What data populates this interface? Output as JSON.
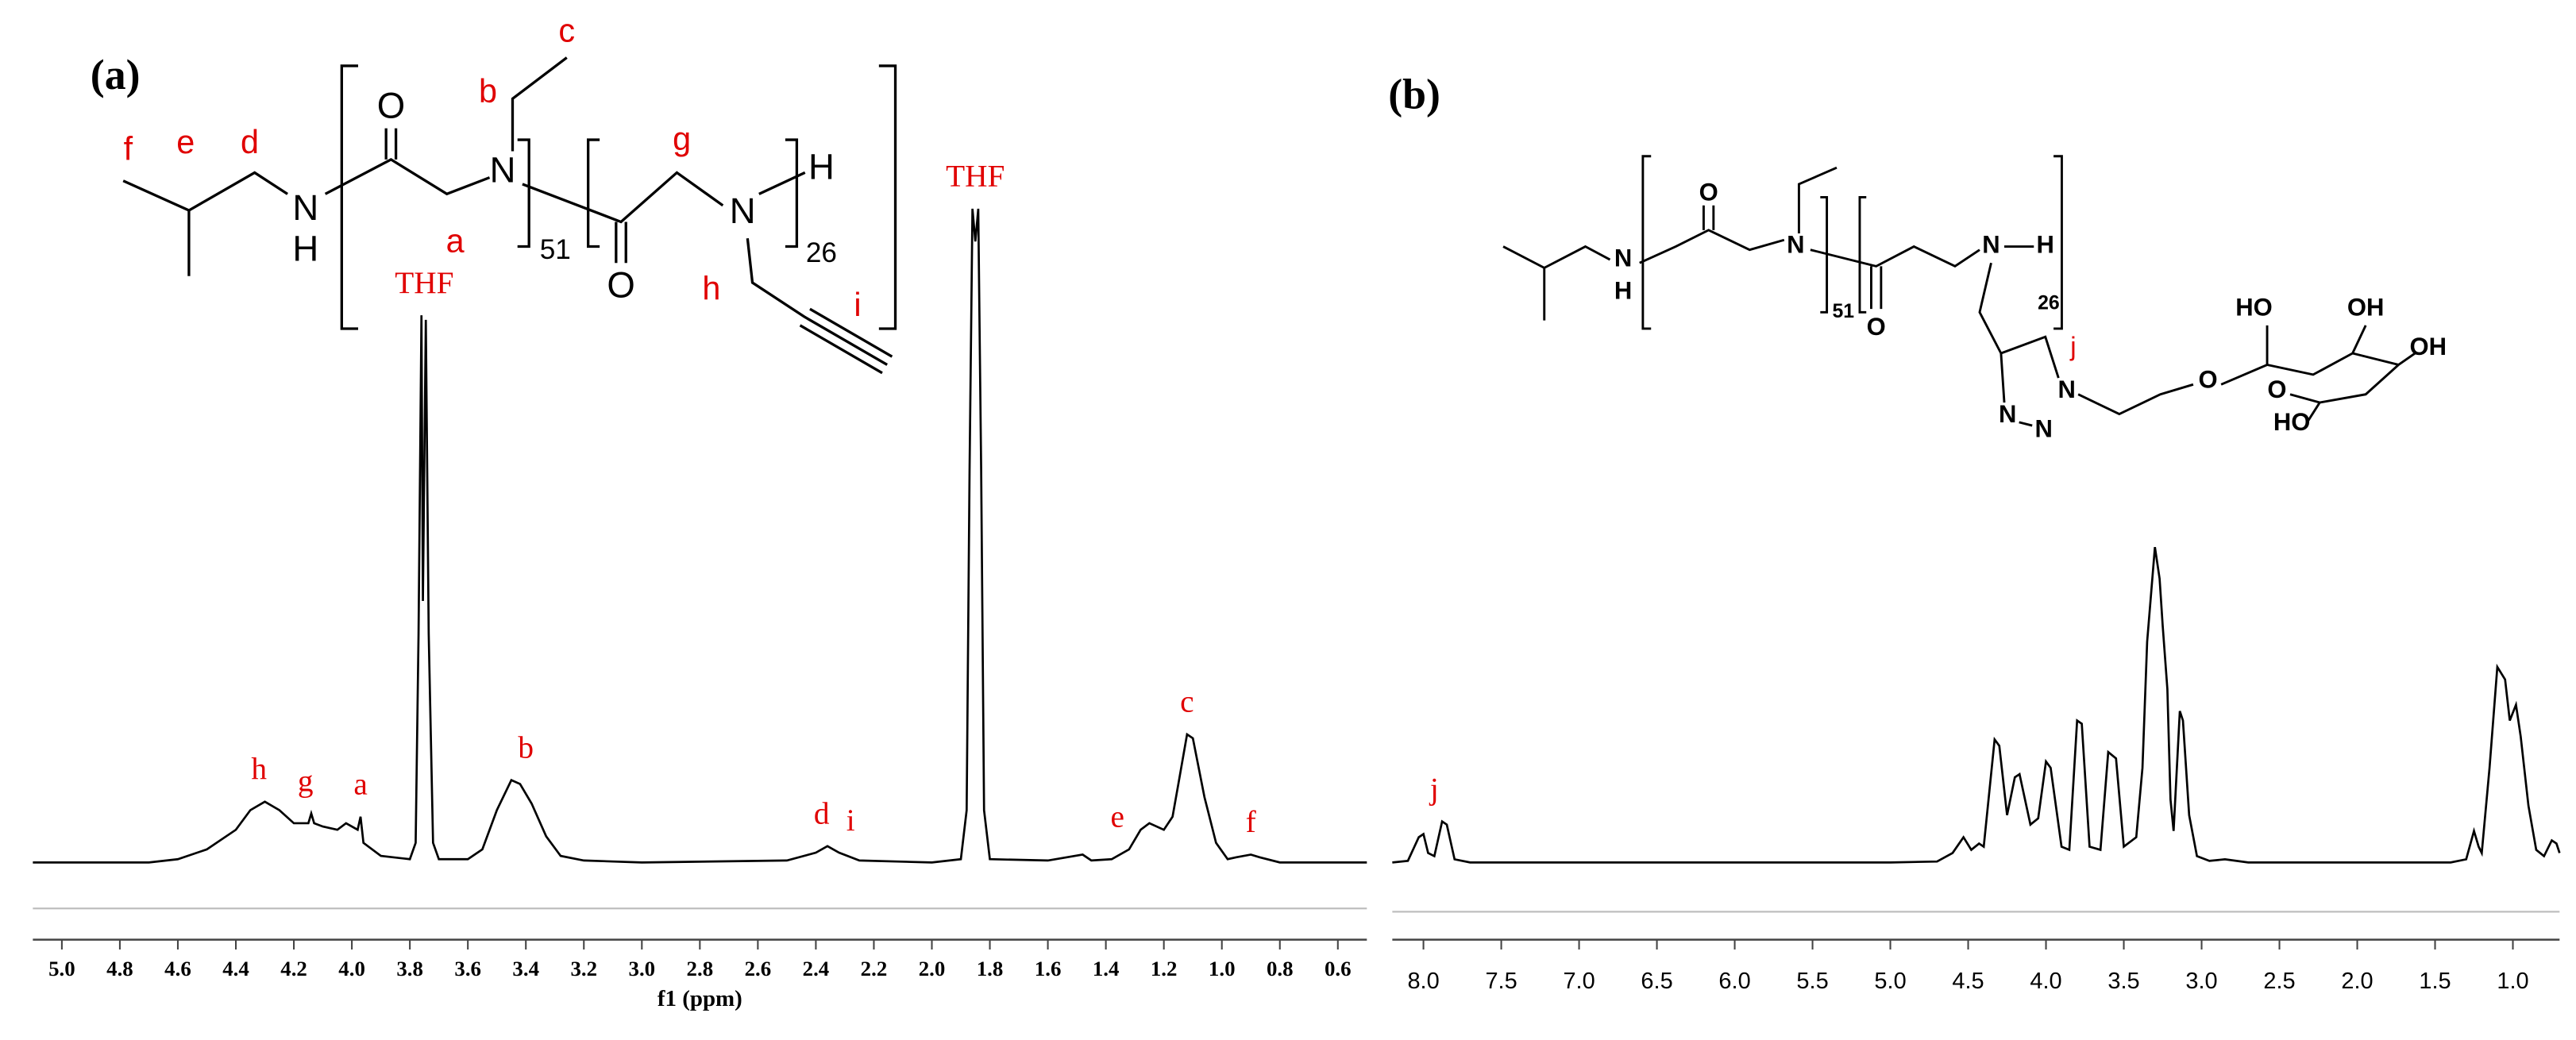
{
  "chart_data": [
    {
      "type": "line",
      "panel_label": "(a)",
      "xlabel": "f1 (ppm)",
      "color": "#000000",
      "xlim": [
        5.1,
        0.5
      ],
      "ylim": [
        0,
        100
      ],
      "xticks": [
        {
          "value": 5,
          "label": "5.0"
        },
        4.8,
        4.6,
        4.4,
        4.2,
        {
          "value": 4,
          "label": "4.0"
        },
        3.8,
        3.6,
        3.4,
        3.2,
        {
          "value": 3,
          "label": "3.0"
        },
        2.8,
        2.6,
        2.4,
        2.2,
        {
          "value": 2,
          "label": "2.0"
        },
        1.8,
        1.6,
        1.4,
        1.2,
        {
          "value": 1,
          "label": "1.0"
        },
        0.8,
        0.6
      ],
      "x": [
        5.1,
        4.7,
        4.6,
        4.5,
        4.4,
        4.35,
        4.3,
        4.25,
        4.2,
        4.15,
        4.14,
        4.13,
        4.1,
        4.05,
        4.02,
        4.0,
        3.98,
        3.97,
        3.96,
        3.9,
        3.8,
        3.78,
        3.77,
        3.76,
        3.755,
        3.745,
        3.735,
        3.72,
        3.7,
        3.6,
        3.55,
        3.5,
        3.45,
        3.42,
        3.38,
        3.33,
        3.28,
        3.2,
        3.0,
        2.5,
        2.4,
        2.36,
        2.32,
        2.25,
        2.0,
        1.9,
        1.88,
        1.87,
        1.86,
        1.85,
        1.84,
        1.83,
        1.82,
        1.8,
        1.6,
        1.48,
        1.45,
        1.38,
        1.32,
        1.28,
        1.25,
        1.2,
        1.17,
        1.15,
        1.12,
        1.1,
        1.06,
        1.02,
        0.98,
        0.95,
        0.9,
        0.87,
        0.8,
        0.5
      ],
      "values": [
        0,
        0,
        0.5,
        2,
        5,
        8,
        9.3,
        8,
        6,
        6,
        7.5,
        6,
        5.5,
        5,
        6,
        5.5,
        5,
        7,
        3,
        1,
        0.5,
        3,
        35,
        83.7,
        40,
        83,
        35,
        3,
        0.5,
        0.5,
        2,
        8,
        12.6,
        12,
        9,
        4,
        1,
        0.3,
        0,
        0.3,
        1.5,
        2.5,
        1.5,
        0.3,
        0,
        0.5,
        8,
        60,
        100,
        95,
        100,
        60,
        8,
        0.5,
        0.3,
        1.2,
        0.3,
        0.5,
        2,
        5,
        6,
        5,
        7,
        12,
        19.6,
        19,
        10,
        3,
        0.5,
        0.8,
        1.2,
        0.8,
        0,
        0
      ],
      "annotations": [
        {
          "text": "h",
          "x": 4.32
        },
        {
          "text": "g",
          "x": 4.16
        },
        {
          "text": "a",
          "x": 3.97
        },
        {
          "text": "THF",
          "x": 3.75
        },
        {
          "text": "b",
          "x": 3.4
        },
        {
          "text": "d",
          "x": 2.38
        },
        {
          "text": "i",
          "x": 2.28
        },
        {
          "text": "THF",
          "x": 1.85
        },
        {
          "text": "e",
          "x": 1.36
        },
        {
          "text": "c",
          "x": 1.12
        },
        {
          "text": "f",
          "x": 0.9
        }
      ],
      "structure": [
        "f",
        "e",
        "d",
        "N",
        "H",
        "O",
        "a",
        "N",
        "b",
        "c",
        "51",
        "O",
        "g",
        "N",
        "H",
        "26",
        "h",
        "i"
      ]
    },
    {
      "type": "line",
      "panel_label": "(b)",
      "color": "#000000",
      "xlim": [
        8.2,
        0.7
      ],
      "ylim": [
        0,
        100
      ],
      "xticks": [
        {
          "value": 8,
          "label": "8.0"
        },
        7.5,
        {
          "value": 7,
          "label": "7.0"
        },
        6.5,
        {
          "value": 6,
          "label": "6.0"
        },
        5.5,
        {
          "value": 5,
          "label": "5.0"
        },
        4.5,
        {
          "value": 4,
          "label": "4.0"
        },
        3.5,
        {
          "value": 3,
          "label": "3.0"
        },
        2.5,
        {
          "value": 2,
          "label": "2.0"
        },
        1.5,
        {
          "value": 1,
          "label": "1.0"
        }
      ],
      "x": [
        8.2,
        8.1,
        8.03,
        8.0,
        7.97,
        7.93,
        7.88,
        7.85,
        7.8,
        7.7,
        5.0,
        4.7,
        4.6,
        4.53,
        4.48,
        4.43,
        4.4,
        4.33,
        4.3,
        4.25,
        4.2,
        4.17,
        4.1,
        4.05,
        4.0,
        3.97,
        3.9,
        3.85,
        3.8,
        3.77,
        3.72,
        3.65,
        3.6,
        3.55,
        3.5,
        3.42,
        3.38,
        3.35,
        3.3,
        3.27,
        3.25,
        3.22,
        3.2,
        3.18,
        3.14,
        3.12,
        3.08,
        3.03,
        2.95,
        2.85,
        2.7,
        1.4,
        1.3,
        1.25,
        1.22,
        1.2,
        1.15,
        1.1,
        1.05,
        1.02,
        0.98,
        0.95,
        0.9,
        0.85,
        0.8,
        0.75,
        0.72,
        0.7
      ],
      "values": [
        0,
        0.5,
        8,
        9,
        3,
        2,
        13,
        12,
        1,
        0,
        0,
        0.3,
        3,
        8,
        4,
        6,
        5,
        39,
        37,
        15,
        27,
        28,
        12,
        14,
        32,
        30,
        5,
        4,
        45,
        44,
        5,
        4,
        35,
        33,
        5,
        8,
        30,
        70,
        100,
        90,
        75,
        55,
        20,
        10,
        48,
        45,
        15,
        2,
        0.5,
        1,
        0,
        0,
        1,
        10,
        5,
        3,
        30,
        62,
        58,
        45,
        50,
        40,
        18,
        4,
        2,
        7,
        6,
        3
      ],
      "annotations": [
        {
          "text": "j",
          "x": 7.93
        }
      ],
      "structure": [
        "N",
        "H",
        "O",
        "N",
        "51",
        "O",
        "N",
        "26",
        "H",
        "N",
        "j",
        "N",
        "N",
        "O",
        "HO",
        "OH",
        "OH",
        "O",
        "HO"
      ]
    }
  ]
}
